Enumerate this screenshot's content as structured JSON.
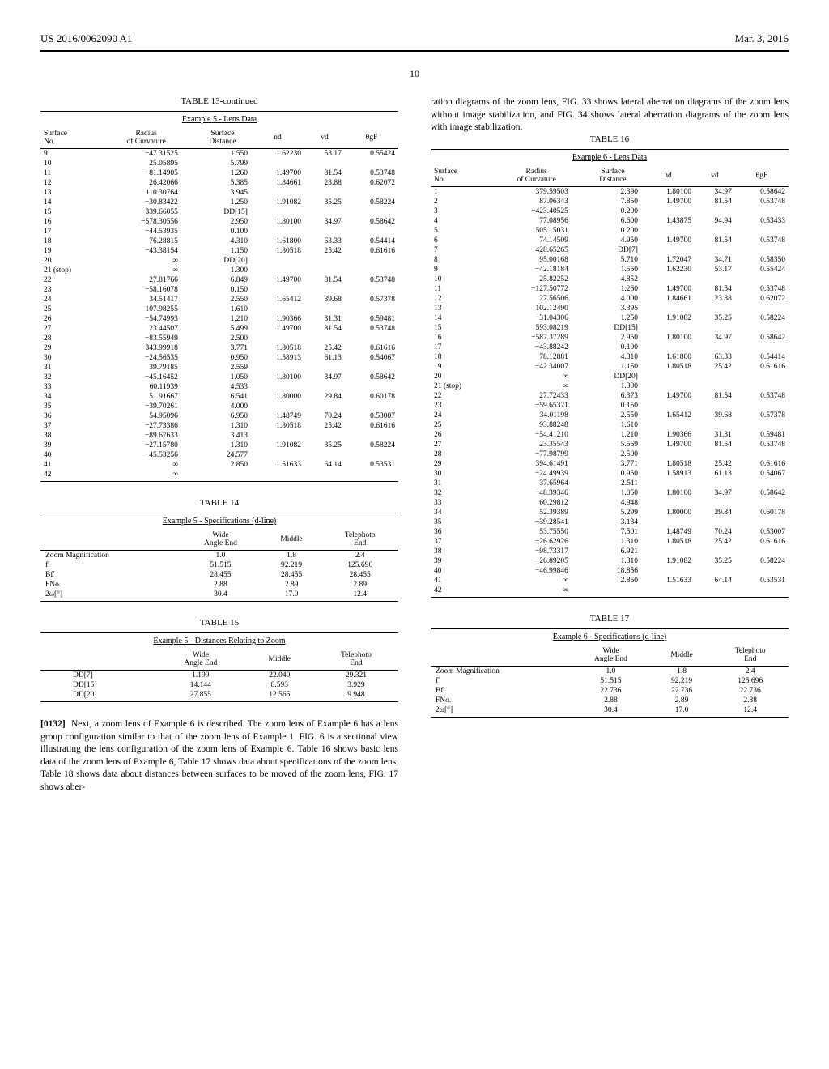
{
  "header": {
    "left": "US 2016/0062090 A1",
    "right": "Mar. 3, 2016",
    "page_number": "10"
  },
  "table13": {
    "title": "TABLE 13-continued",
    "sub": "Example 5 - Lens Data",
    "cols": [
      "Surface No.",
      "Radius of Curvature",
      "Surface Distance",
      "nd",
      "vd",
      "θgF"
    ],
    "rows": [
      [
        "9",
        "−47.31525",
        "1.550",
        "1.62230",
        "53.17",
        "0.55424"
      ],
      [
        "10",
        "25.05895",
        "5.799",
        "",
        "",
        ""
      ],
      [
        "11",
        "−81.14905",
        "1.260",
        "1.49700",
        "81.54",
        "0.53748"
      ],
      [
        "12",
        "26.42066",
        "5.385",
        "1.84661",
        "23.88",
        "0.62072"
      ],
      [
        "13",
        "110.30764",
        "3.945",
        "",
        "",
        ""
      ],
      [
        "14",
        "−30.83422",
        "1.250",
        "1.91082",
        "35.25",
        "0.58224"
      ],
      [
        "15",
        "339.66055",
        "DD[15]",
        "",
        "",
        ""
      ],
      [
        "16",
        "−578.30556",
        "2.950",
        "1.80100",
        "34.97",
        "0.58642"
      ],
      [
        "17",
        "−44.53935",
        "0.100",
        "",
        "",
        ""
      ],
      [
        "18",
        "76.28815",
        "4.310",
        "1.61800",
        "63.33",
        "0.54414"
      ],
      [
        "19",
        "−43.38154",
        "1.150",
        "1.80518",
        "25.42",
        "0.61616"
      ],
      [
        "20",
        "∞",
        "DD[20]",
        "",
        "",
        ""
      ],
      [
        "21 (stop)",
        "∞",
        "1.300",
        "",
        "",
        ""
      ],
      [
        "22",
        "27.81766",
        "6.849",
        "1.49700",
        "81.54",
        "0.53748"
      ],
      [
        "23",
        "−58.16078",
        "0.150",
        "",
        "",
        ""
      ],
      [
        "24",
        "34.51417",
        "2.550",
        "1.65412",
        "39.68",
        "0.57378"
      ],
      [
        "25",
        "107.98255",
        "1.610",
        "",
        "",
        ""
      ],
      [
        "26",
        "−54.74993",
        "1.210",
        "1.90366",
        "31.31",
        "0.59481"
      ],
      [
        "27",
        "23.44507",
        "5.499",
        "1.49700",
        "81.54",
        "0.53748"
      ],
      [
        "28",
        "−83.55949",
        "2.500",
        "",
        "",
        ""
      ],
      [
        "29",
        "343.99918",
        "3.771",
        "1.80518",
        "25.42",
        "0.61616"
      ],
      [
        "30",
        "−24.56535",
        "0.950",
        "1.58913",
        "61.13",
        "0.54067"
      ],
      [
        "31",
        "39.79185",
        "2.559",
        "",
        "",
        ""
      ],
      [
        "32",
        "−45.16452",
        "1.050",
        "1.80100",
        "34.97",
        "0.58642"
      ],
      [
        "33",
        "60.11939",
        "4.533",
        "",
        "",
        ""
      ],
      [
        "34",
        "51.91667",
        "6.541",
        "1.80000",
        "29.84",
        "0.60178"
      ],
      [
        "35",
        "−39.70261",
        "4.000",
        "",
        "",
        ""
      ],
      [
        "36",
        "54.95096",
        "6.950",
        "1.48749",
        "70.24",
        "0.53007"
      ],
      [
        "37",
        "−27.73386",
        "1.310",
        "1.80518",
        "25.42",
        "0.61616"
      ],
      [
        "38",
        "−89.67633",
        "3.413",
        "",
        "",
        ""
      ],
      [
        "39",
        "−27.15780",
        "1.310",
        "1.91082",
        "35.25",
        "0.58224"
      ],
      [
        "40",
        "−45.53256",
        "24.577",
        "",
        "",
        ""
      ],
      [
        "41",
        "∞",
        "2.850",
        "1.51633",
        "64.14",
        "0.53531"
      ],
      [
        "42",
        "∞",
        "",
        "",
        "",
        ""
      ]
    ]
  },
  "table14": {
    "title": "TABLE 14",
    "sub": "Example 5 - Specifications (d-line)",
    "cols": [
      "",
      "Wide Angle End",
      "Middle",
      "Telephoto End"
    ],
    "rows": [
      [
        "Zoom Magnification",
        "1.0",
        "1.8",
        "2.4"
      ],
      [
        "f′",
        "51.515",
        "92.219",
        "125.696"
      ],
      [
        "Bf′",
        "28.455",
        "28.455",
        "28.455"
      ],
      [
        "FNo.",
        "2.88",
        "2.89",
        "2.89"
      ],
      [
        "2ω[°]",
        "30.4",
        "17.0",
        "12.4"
      ]
    ]
  },
  "table15": {
    "title": "TABLE 15",
    "sub": "Example 5 - Distances Relating to Zoom",
    "cols": [
      "",
      "Wide Angle End",
      "Middle",
      "Telephoto End"
    ],
    "rows": [
      [
        "DD[7]",
        "1.199",
        "22.040",
        "29.321"
      ],
      [
        "DD[15]",
        "14.144",
        "8.593",
        "3.929"
      ],
      [
        "DD[20]",
        "27.855",
        "12.565",
        "9.948"
      ]
    ]
  },
  "paragraph": {
    "num": "[0132]",
    "text_left": "Next, a zoom lens of Example 6 is described. The zoom lens of Example 6 has a lens group configuration similar to that of the zoom lens of Example 1. FIG. 6 is a sectional view illustrating the lens configuration of the zoom lens of Example 6. Table 16 shows basic lens data of the zoom lens of Example 6, Table 17 shows data about specifications of the zoom lens, Table 18 shows data about distances between surfaces to be moved of the zoom lens, FIG. 17 shows aber-",
    "text_right": "ration diagrams of the zoom lens, FIG. 33 shows lateral aberration diagrams of the zoom lens without image stabilization, and FIG. 34 shows lateral aberration diagrams of the zoom lens with image stabilization."
  },
  "table16": {
    "title": "TABLE 16",
    "sub": "Example 6 - Lens Data",
    "cols": [
      "Surface No.",
      "Radius of Curvature",
      "Surface Distance",
      "nd",
      "vd",
      "θgF"
    ],
    "rows": [
      [
        "1",
        "379.59503",
        "2.390",
        "1.80100",
        "34.97",
        "0.58642"
      ],
      [
        "2",
        "87.06343",
        "7.850",
        "1.49700",
        "81.54",
        "0.53748"
      ],
      [
        "3",
        "−423.40525",
        "0.200",
        "",
        "",
        ""
      ],
      [
        "4",
        "77.08956",
        "6.600",
        "1.43875",
        "94.94",
        "0.53433"
      ],
      [
        "5",
        "505.15031",
        "0.200",
        "",
        "",
        ""
      ],
      [
        "6",
        "74.14509",
        "4.950",
        "1.49700",
        "81.54",
        "0.53748"
      ],
      [
        "7",
        "428.65265",
        "DD[7]",
        "",
        "",
        ""
      ],
      [
        "8",
        "95.00168",
        "5.710",
        "1.72047",
        "34.71",
        "0.58350"
      ],
      [
        "9",
        "−42.18184",
        "1.550",
        "1.62230",
        "53.17",
        "0.55424"
      ],
      [
        "10",
        "25.82252",
        "4.852",
        "",
        "",
        ""
      ],
      [
        "11",
        "−127.50772",
        "1.260",
        "1.49700",
        "81.54",
        "0.53748"
      ],
      [
        "12",
        "27.56506",
        "4.000",
        "1.84661",
        "23.88",
        "0.62072"
      ],
      [
        "13",
        "102.12490",
        "3.395",
        "",
        "",
        ""
      ],
      [
        "14",
        "−31.04306",
        "1.250",
        "1.91082",
        "35.25",
        "0.58224"
      ],
      [
        "15",
        "593.08219",
        "DD[15]",
        "",
        "",
        ""
      ],
      [
        "16",
        "−587.37289",
        "2.950",
        "1.80100",
        "34.97",
        "0.58642"
      ],
      [
        "17",
        "−43.88242",
        "0.100",
        "",
        "",
        ""
      ],
      [
        "18",
        "78.12881",
        "4.310",
        "1.61800",
        "63.33",
        "0.54414"
      ],
      [
        "19",
        "−42.34007",
        "1.150",
        "1.80518",
        "25.42",
        "0.61616"
      ],
      [
        "20",
        "∞",
        "DD[20]",
        "",
        "",
        ""
      ],
      [
        "21 (stop)",
        "∞",
        "1.300",
        "",
        "",
        ""
      ],
      [
        "22",
        "27.72433",
        "6.373",
        "1.49700",
        "81.54",
        "0.53748"
      ],
      [
        "23",
        "−59.65321",
        "0.150",
        "",
        "",
        ""
      ],
      [
        "24",
        "34.01198",
        "2.550",
        "1.65412",
        "39.68",
        "0.57378"
      ],
      [
        "25",
        "93.88248",
        "1.610",
        "",
        "",
        ""
      ],
      [
        "26",
        "−54.41210",
        "1.210",
        "1.90366",
        "31.31",
        "0.59481"
      ],
      [
        "27",
        "23.35543",
        "5.569",
        "1.49700",
        "81.54",
        "0.53748"
      ],
      [
        "28",
        "−77.98799",
        "2.500",
        "",
        "",
        ""
      ],
      [
        "29",
        "394.61491",
        "3.771",
        "1.80518",
        "25.42",
        "0.61616"
      ],
      [
        "30",
        "−24.49939",
        "0.950",
        "1.58913",
        "61.13",
        "0.54067"
      ],
      [
        "31",
        "37.65964",
        "2.511",
        "",
        "",
        ""
      ],
      [
        "32",
        "−48.39346",
        "1.050",
        "1.80100",
        "34.97",
        "0.58642"
      ],
      [
        "33",
        "60.29812",
        "4.948",
        "",
        "",
        ""
      ],
      [
        "34",
        "52.39389",
        "5.299",
        "1.80000",
        "29.84",
        "0.60178"
      ],
      [
        "35",
        "−39.28541",
        "3.134",
        "",
        "",
        ""
      ],
      [
        "36",
        "53.75550",
        "7.501",
        "1.48749",
        "70.24",
        "0.53007"
      ],
      [
        "37",
        "−26.62926",
        "1.310",
        "1.80518",
        "25.42",
        "0.61616"
      ],
      [
        "38",
        "−98.73317",
        "6.921",
        "",
        "",
        ""
      ],
      [
        "39",
        "−26.89205",
        "1.310",
        "1.91082",
        "35.25",
        "0.58224"
      ],
      [
        "40",
        "−46.99846",
        "18.856",
        "",
        "",
        ""
      ],
      [
        "41",
        "∞",
        "2.850",
        "1.51633",
        "64.14",
        "0.53531"
      ],
      [
        "42",
        "∞",
        "",
        "",
        "",
        ""
      ]
    ]
  },
  "table17": {
    "title": "TABLE 17",
    "sub": "Example 6 - Specifications (d-line)",
    "cols": [
      "",
      "Wide Angle End",
      "Middle",
      "Telephoto End"
    ],
    "rows": [
      [
        "Zoom Magnification",
        "1.0",
        "1.8",
        "2.4"
      ],
      [
        "f′",
        "51.515",
        "92.219",
        "125.696"
      ],
      [
        "Bf′",
        "22.736",
        "22.736",
        "22.736"
      ],
      [
        "FNo.",
        "2.88",
        "2.89",
        "2.88"
      ],
      [
        "2ω[°]",
        "30.4",
        "17.0",
        "12.4"
      ]
    ]
  }
}
